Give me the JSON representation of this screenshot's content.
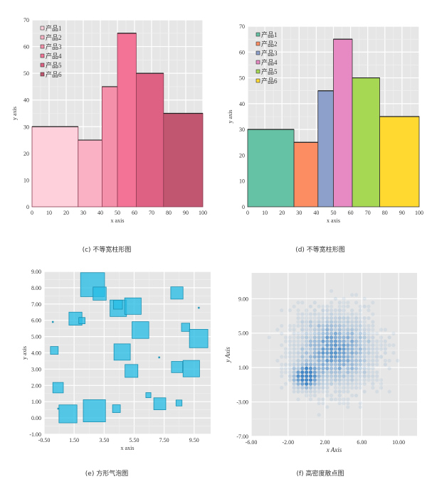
{
  "captions": {
    "c": "(c) 不等宽柱形图",
    "d": "(d) 不等宽柱形图",
    "e": "(e) 方形气泡图",
    "f": "(f) 高密度散点图"
  },
  "chart_data": [
    {
      "id": "c",
      "type": "bar",
      "subtype": "variable-width",
      "xlabel": "x axis",
      "ylabel": "y axis",
      "xlim": [
        0,
        100
      ],
      "ylim": [
        0,
        70
      ],
      "xticks": [
        0,
        10,
        20,
        30,
        40,
        50,
        60,
        70,
        80,
        90,
        100
      ],
      "yticks": [
        0,
        10,
        20,
        30,
        40,
        50,
        60,
        70
      ],
      "grid": true,
      "legend": "top-left",
      "series": [
        {
          "name": "产品1",
          "x0": 0,
          "x1": 27,
          "value": 30,
          "color": "#fdd0dc"
        },
        {
          "name": "产品2",
          "x0": 27,
          "x1": 41,
          "value": 25,
          "color": "#fbb1c4"
        },
        {
          "name": "产品3",
          "x0": 41,
          "x1": 50,
          "value": 45,
          "color": "#f590ab"
        },
        {
          "name": "产品4",
          "x0": 50,
          "x1": 61,
          "value": 65,
          "color": "#f27395"
        },
        {
          "name": "产品5",
          "x0": 61,
          "x1": 77,
          "value": 50,
          "color": "#de6183"
        },
        {
          "name": "产品6",
          "x0": 77,
          "x1": 100,
          "value": 35,
          "color": "#c0566f"
        }
      ]
    },
    {
      "id": "d",
      "type": "bar",
      "subtype": "variable-width",
      "xlabel": "x axis",
      "ylabel": "y axis",
      "xlim": [
        0,
        100
      ],
      "ylim": [
        0,
        70
      ],
      "xticks": [
        0,
        10,
        20,
        30,
        40,
        50,
        60,
        70,
        80,
        90,
        100
      ],
      "yticks": [
        0,
        10,
        20,
        30,
        40,
        50,
        60,
        70
      ],
      "grid": true,
      "legend": "top-left",
      "series": [
        {
          "name": "产品1",
          "x0": 0,
          "x1": 27,
          "value": 30,
          "color": "#66c2a5"
        },
        {
          "name": "产品2",
          "x0": 27,
          "x1": 41,
          "value": 25,
          "color": "#fc8d62"
        },
        {
          "name": "产品3",
          "x0": 41,
          "x1": 50,
          "value": 45,
          "color": "#8da0cb"
        },
        {
          "name": "产品4",
          "x0": 50,
          "x1": 61,
          "value": 65,
          "color": "#e78ac3"
        },
        {
          "name": "产品5",
          "x0": 61,
          "x1": 77,
          "value": 50,
          "color": "#a6d854"
        },
        {
          "name": "产品6",
          "x0": 77,
          "x1": 100,
          "value": 35,
          "color": "#ffd92f"
        }
      ]
    },
    {
      "id": "e",
      "type": "scatter",
      "subtype": "square-bubble",
      "xlabel": "x axis",
      "ylabel": "y axis",
      "xlim": [
        -0.5,
        10.6
      ],
      "ylim": [
        -1,
        9
      ],
      "xticks": [
        "-0.50",
        "1.50",
        "3.50",
        "5.50",
        "7.50",
        "9.50"
      ],
      "yticks": [
        "-1.00",
        "0.00",
        "1.00",
        "2.00",
        "3.00",
        "4.00",
        "5.00",
        "6.00",
        "7.00",
        "8.00",
        "9.00"
      ],
      "grid": true,
      "color": "#29bde6",
      "points": [
        [
          2.73,
          8.19,
          1.6
        ],
        [
          3.2,
          7.64,
          0.88
        ],
        [
          4.44,
          6.74,
          1.1
        ],
        [
          4.42,
          6.96,
          0.6
        ],
        [
          5.42,
          6.87,
          1.1
        ],
        [
          8.35,
          7.68,
          0.82
        ],
        [
          1.59,
          6.1,
          0.87
        ],
        [
          2.02,
          5.98,
          0.42
        ],
        [
          5.92,
          5.4,
          1.12
        ],
        [
          8.93,
          5.57,
          0.55
        ],
        [
          9.8,
          4.88,
          1.23
        ],
        [
          0.18,
          4.15,
          0.52
        ],
        [
          4.7,
          4.05,
          1.09
        ],
        [
          8.36,
          3.13,
          0.75
        ],
        [
          9.31,
          3.03,
          1.1
        ],
        [
          5.32,
          2.89,
          0.86
        ],
        [
          0.43,
          1.86,
          0.7
        ],
        [
          6.45,
          1.4,
          0.34
        ],
        [
          7.21,
          0.87,
          0.8
        ],
        [
          8.49,
          0.92,
          0.4
        ],
        [
          2.85,
          0.44,
          1.48
        ],
        [
          1.09,
          0.25,
          1.2
        ],
        [
          4.32,
          0.57,
          0.52
        ],
        [
          0.08,
          5.9,
          0.08
        ],
        [
          9.81,
          6.77,
          0.08
        ],
        [
          7.17,
          3.72,
          0.08
        ],
        [
          0.44,
          0.57,
          0.08
        ]
      ]
    },
    {
      "id": "f",
      "type": "scatter",
      "subtype": "high-density",
      "xlabel": "x Axis",
      "ylabel": "y Axis",
      "xlim": [
        -6,
        12
      ],
      "ylim": [
        -7,
        12
      ],
      "xticks": [
        "-6.00",
        "-2.00",
        "2.00",
        "6.00",
        "10.00"
      ],
      "yticks": [
        "-7.00",
        "-3.00",
        "1.00",
        "5.00",
        "9.00"
      ],
      "grid": true,
      "color": "#3a82c4",
      "clusters": [
        {
          "center": [
            3,
            3
          ],
          "sd": [
            2,
            2
          ]
        },
        {
          "center": [
            0,
            0
          ],
          "sd": [
            0.7,
            0.7
          ]
        }
      ]
    }
  ]
}
